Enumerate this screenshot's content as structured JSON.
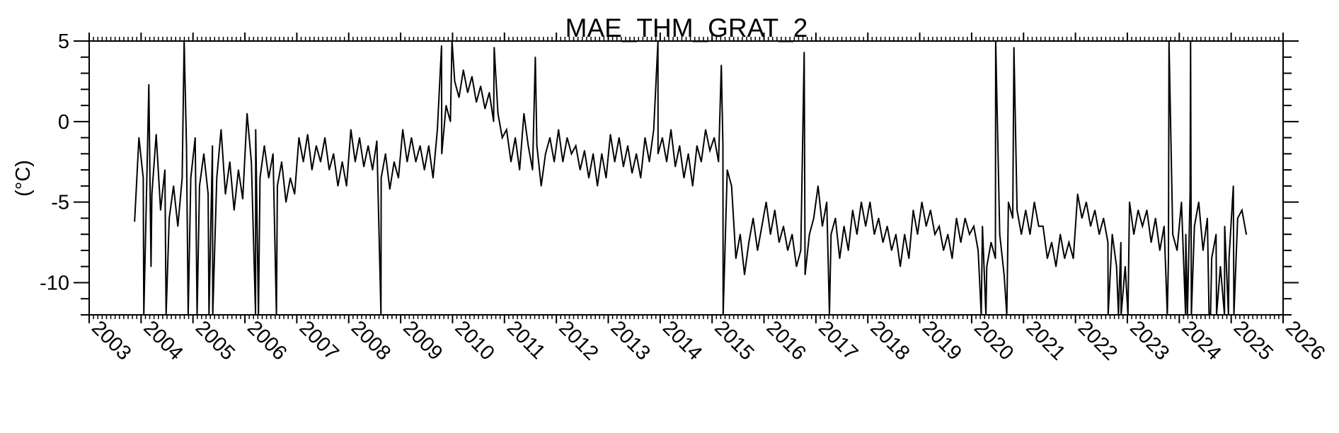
{
  "chart_data": {
    "type": "line",
    "title": "MAE_THM_GRAT_2",
    "xlabel": "",
    "ylabel": "(°C)",
    "xlim": [
      2003,
      2026
    ],
    "ylim": [
      -12,
      5
    ],
    "x_ticks": [
      "2003",
      "2004",
      "2005",
      "2006",
      "2007",
      "2008",
      "2009",
      "2010",
      "2011",
      "2012",
      "2013",
      "2014",
      "2015",
      "2016",
      "2017",
      "2018",
      "2019",
      "2020",
      "2021",
      "2022",
      "2023",
      "2024",
      "2025",
      "2026"
    ],
    "y_ticks": [
      5,
      0,
      -5,
      -10
    ],
    "y_tick_labels": [
      "5",
      "0",
      "-5",
      "-10"
    ],
    "grid": false,
    "line_color": "#000000",
    "monthly": {
      "2003": [
        null,
        null,
        null,
        null,
        null,
        null,
        null,
        null,
        null,
        null,
        -6.2,
        -1.0
      ],
      "2004": [
        -3.5,
        -1.5,
        -4.5,
        -0.8,
        -5.5,
        -3,
        -6,
        -4,
        -6.5,
        -3.5,
        -1.5,
        -3.5
      ],
      "2005": [
        -1,
        -4,
        -2,
        -4.5,
        -1.5,
        -3.5,
        -0.5,
        -4.5,
        -2.5,
        -5.5,
        -3,
        -4.8
      ],
      "2006": [
        0.5,
        -2.5,
        -0.5,
        -3.5,
        -1.5,
        -3.5,
        -2,
        -4,
        -2.5,
        -5,
        -3.5,
        -4.5
      ],
      "2007": [
        -1,
        -2.5,
        -0.8,
        -3,
        -1.5,
        -2.5,
        -1,
        -3,
        -2,
        -4,
        -2.5,
        -4
      ],
      "2008": [
        -0.5,
        -2.5,
        -1,
        -2.8,
        -1.5,
        -3,
        -1.2,
        -3.5,
        -2,
        -4.2,
        -2.5,
        -3.5
      ],
      "2009": [
        -0.5,
        -2.5,
        -1,
        -2.5,
        -1.5,
        -3,
        -1.5,
        -3.5,
        -0.5,
        -2,
        1,
        0
      ],
      "2010": [
        2.5,
        1.5,
        3.2,
        1.8,
        2.8,
        1.2,
        2.2,
        0.8,
        1.8,
        0,
        0.5,
        -1
      ],
      "2011": [
        -0.5,
        -2.5,
        -1,
        -3,
        0.5,
        -1.5,
        -3,
        -1.5,
        -4,
        -2,
        -1,
        -2.5
      ],
      "2012": [
        -0.5,
        -2.5,
        -1,
        -2,
        -1.5,
        -3,
        -1.8,
        -3.5,
        -2,
        -4,
        -2,
        -3.5
      ],
      "2013": [
        -0.8,
        -2.5,
        -1,
        -2.8,
        -1.5,
        -3.2,
        -2,
        -3.5,
        -1,
        -2.5,
        -0.5,
        -2
      ],
      "2014": [
        -1,
        -2.5,
        -0.5,
        -2.8,
        -1.5,
        -3.5,
        -2,
        -4,
        -1.5,
        -2.5,
        -0.5,
        -1.8
      ],
      "2015": [
        -1,
        -2.5,
        -1.5,
        -3,
        -4,
        -8.5,
        -7,
        -9.5,
        -7.5,
        -6,
        -8,
        -6.5
      ],
      "2016": [
        -5,
        -7,
        -5.5,
        -7.5,
        -6.5,
        -8,
        -7,
        -9,
        -8,
        -9.5,
        -7,
        -6
      ],
      "2017": [
        -4,
        -6.5,
        -5,
        -7,
        -6,
        -8.5,
        -6.5,
        -8,
        -5.5,
        -7,
        -5,
        -6.5
      ],
      "2018": [
        -5,
        -7,
        -6,
        -7.5,
        -6.5,
        -8,
        -7,
        -9,
        -7,
        -8.5,
        -5.5,
        -7
      ],
      "2019": [
        -5,
        -6.5,
        -5.5,
        -7,
        -6.5,
        -8,
        -7,
        -8.5,
        -6,
        -7.5,
        -6,
        -7
      ],
      "2020": [
        -6.5,
        -8,
        -6.5,
        -9,
        -7.5,
        -8.5,
        -7,
        -9.5,
        -5,
        -6,
        -5.5,
        -7
      ],
      "2021": [
        -5.5,
        -7,
        -5,
        -6.5,
        -6.5,
        -8.5,
        -7.5,
        -9,
        -7,
        -8.5,
        -7.5,
        -8.5
      ],
      "2022": [
        -4.5,
        -6,
        -5,
        -6.5,
        -5.5,
        -7,
        -6,
        -7.5,
        -7,
        -9,
        -7.5,
        -9
      ],
      "2023": [
        -5,
        -7,
        -5.5,
        -6.5,
        -5.5,
        -7.5,
        -6,
        -8,
        -6.5,
        -8.5,
        -7,
        -8
      ],
      "2024": [
        -5,
        -7,
        -4.5,
        -6.5,
        -5,
        -8,
        -6,
        -8.5,
        -7,
        -9,
        -6.5,
        -8.5
      ],
      "2025": [
        -4,
        -6,
        -5.5,
        -7
      ]
    },
    "spikes": [
      {
        "date": "2004-01-20",
        "value": -12
      },
      {
        "date": "2004-02-25",
        "value": 2.3
      },
      {
        "date": "2004-03-10",
        "value": -9
      },
      {
        "date": "2004-06-25",
        "value": -12
      },
      {
        "date": "2004-10-30",
        "value": 5
      },
      {
        "date": "2004-11-28",
        "value": -12
      },
      {
        "date": "2005-01-30",
        "value": -12
      },
      {
        "date": "2005-04-22",
        "value": -12
      },
      {
        "date": "2005-05-18",
        "value": -12
      },
      {
        "date": "2006-03-15",
        "value": -12
      },
      {
        "date": "2006-04-05",
        "value": -12
      },
      {
        "date": "2006-08-10",
        "value": -12
      },
      {
        "date": "2008-08-15",
        "value": -12
      },
      {
        "date": "2009-10-15",
        "value": 4.7
      },
      {
        "date": "2009-12-28",
        "value": 5
      },
      {
        "date": "2010-10-20",
        "value": 4.6
      },
      {
        "date": "2011-08-05",
        "value": 4.0
      },
      {
        "date": "2013-12-16",
        "value": 5
      },
      {
        "date": "2015-03-05",
        "value": 3.5
      },
      {
        "date": "2015-03-18",
        "value": -12
      },
      {
        "date": "2016-10-10",
        "value": 4.3
      },
      {
        "date": "2017-04-05",
        "value": -12
      },
      {
        "date": "2020-03-08",
        "value": -12
      },
      {
        "date": "2020-04-10",
        "value": -12
      },
      {
        "date": "2020-06-18",
        "value": 5
      },
      {
        "date": "2020-09-05",
        "value": -12
      },
      {
        "date": "2020-10-25",
        "value": 4.6
      },
      {
        "date": "2022-08-18",
        "value": -12
      },
      {
        "date": "2022-10-30",
        "value": -12
      },
      {
        "date": "2022-11-18",
        "value": -12
      },
      {
        "date": "2023-01-05",
        "value": -12
      },
      {
        "date": "2023-10-08",
        "value": -12
      },
      {
        "date": "2023-10-20",
        "value": 5
      },
      {
        "date": "2024-02-15",
        "value": -12
      },
      {
        "date": "2024-02-28",
        "value": -12
      },
      {
        "date": "2024-03-20",
        "value": 5
      },
      {
        "date": "2024-03-25",
        "value": -12
      },
      {
        "date": "2024-07-28",
        "value": -12
      },
      {
        "date": "2024-08-08",
        "value": -12
      },
      {
        "date": "2024-09-20",
        "value": -12
      },
      {
        "date": "2024-11-15",
        "value": -12
      },
      {
        "date": "2024-12-12",
        "value": -12
      },
      {
        "date": "2025-01-20",
        "value": -12
      }
    ]
  }
}
